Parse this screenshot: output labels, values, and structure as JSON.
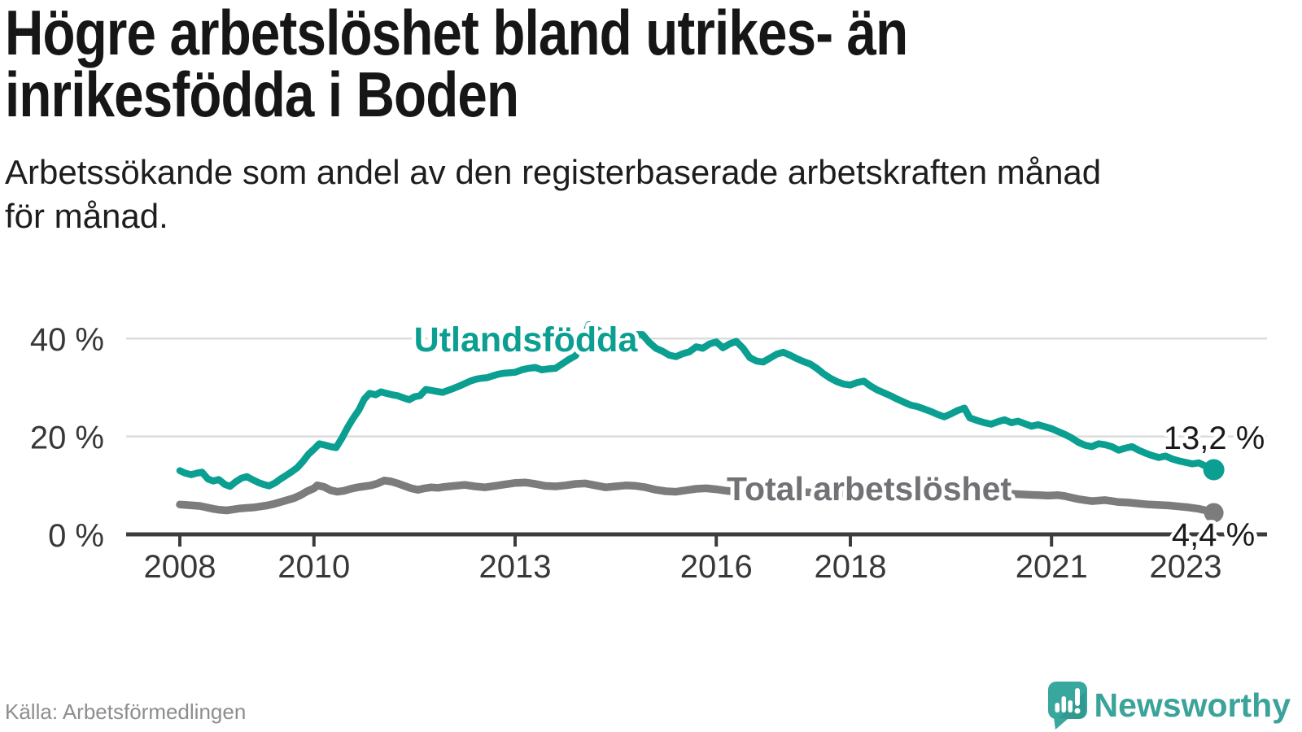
{
  "header": {
    "title_lines": [
      "Högre arbetslöshet bland utrikes- än",
      "inrikesfödda i Boden"
    ],
    "subtitle_lines": [
      "Arbetssökande som andel av den registerbaserade arbetskraften månad",
      "för månad."
    ]
  },
  "chart": {
    "y_axis": {
      "tick_values": [
        0,
        20,
        40
      ],
      "tick_labels": [
        "0 %",
        "20 %",
        "40 %"
      ]
    },
    "x_axis": {
      "tick_values": [
        2008,
        2010,
        2013,
        2016,
        2018,
        2021,
        2023
      ],
      "tick_labels": [
        "2008",
        "2010",
        "2013",
        "2016",
        "2018",
        "2021",
        "2023"
      ]
    }
  },
  "chart_data": {
    "type": "line",
    "title": "Högre arbetslöshet bland utrikes- än inrikesfödda i Boden",
    "subtitle": "Arbetssökande som andel av den registerbaserade arbetskraften månad för månad.",
    "xlabel": "",
    "ylabel": "Arbetssökande som andel av den registerbaserade arbetskraften (%)",
    "x_ticks": [
      2008,
      2010,
      2013,
      2016,
      2018,
      2021,
      2023
    ],
    "y_ticks": [
      0,
      20,
      40
    ],
    "ylim": [
      0,
      44
    ],
    "xlim": [
      2007.75,
      2023.95
    ],
    "grid": "horizontal",
    "legend": "inline-labels",
    "series": [
      {
        "name": "Utlandsfödda",
        "color": "#0a9f91",
        "end_value": 13.2,
        "end_label": "13,2 %",
        "points": [
          [
            2008,
            13
          ],
          [
            2008.08,
            12.5
          ],
          [
            2008.17,
            12.2
          ],
          [
            2008.25,
            12.5
          ],
          [
            2008.33,
            12.7
          ],
          [
            2008.42,
            11.3
          ],
          [
            2008.5,
            10.9
          ],
          [
            2008.58,
            11.2
          ],
          [
            2008.67,
            10.2
          ],
          [
            2008.75,
            9.8
          ],
          [
            2008.83,
            10.7
          ],
          [
            2008.92,
            11.5
          ],
          [
            2009,
            11.8
          ],
          [
            2009.08,
            11.2
          ],
          [
            2009.17,
            10.6
          ],
          [
            2009.25,
            10.2
          ],
          [
            2009.33,
            9.9
          ],
          [
            2009.42,
            10.5
          ],
          [
            2009.5,
            11.3
          ],
          [
            2009.58,
            12
          ],
          [
            2009.67,
            12.8
          ],
          [
            2009.75,
            13.6
          ],
          [
            2009.83,
            14.8
          ],
          [
            2009.92,
            16.4
          ],
          [
            2010,
            17.4
          ],
          [
            2010.08,
            18.5
          ],
          [
            2010.17,
            18.2
          ],
          [
            2010.25,
            17.9
          ],
          [
            2010.33,
            17.7
          ],
          [
            2010.42,
            19.7
          ],
          [
            2010.5,
            21.8
          ],
          [
            2010.58,
            23.6
          ],
          [
            2010.67,
            25.4
          ],
          [
            2010.75,
            27.6
          ],
          [
            2010.83,
            28.8
          ],
          [
            2010.92,
            28.5
          ],
          [
            2011,
            29.1
          ],
          [
            2011.08,
            28.8
          ],
          [
            2011.17,
            28.5
          ],
          [
            2011.25,
            28.3
          ],
          [
            2011.33,
            27.9
          ],
          [
            2011.42,
            27.5
          ],
          [
            2011.5,
            28.1
          ],
          [
            2011.58,
            28.3
          ],
          [
            2011.67,
            29.6
          ],
          [
            2011.75,
            29.4
          ],
          [
            2011.83,
            29.2
          ],
          [
            2011.92,
            29
          ],
          [
            2012,
            29.4
          ],
          [
            2012.08,
            29.8
          ],
          [
            2012.17,
            30.3
          ],
          [
            2012.25,
            30.8
          ],
          [
            2012.33,
            31.3
          ],
          [
            2012.42,
            31.7
          ],
          [
            2012.5,
            31.9
          ],
          [
            2012.58,
            32
          ],
          [
            2012.67,
            32.4
          ],
          [
            2012.75,
            32.7
          ],
          [
            2012.83,
            32.9
          ],
          [
            2012.92,
            33
          ],
          [
            2013,
            33.1
          ],
          [
            2013.1,
            33.6
          ],
          [
            2013.2,
            33.9
          ],
          [
            2013.3,
            34.1
          ],
          [
            2013.4,
            33.6
          ],
          [
            2013.5,
            33.8
          ],
          [
            2013.6,
            33.9
          ],
          [
            2013.7,
            34.8
          ],
          [
            2013.8,
            35.7
          ],
          [
            2013.9,
            36.5
          ],
          [
            2014,
            39
          ],
          [
            2014.1,
            42.8
          ],
          [
            2014.2,
            42
          ],
          [
            2014.3,
            41.2
          ],
          [
            2014.45,
            40.6
          ],
          [
            2014.6,
            41
          ],
          [
            2014.75,
            40.8
          ],
          [
            2014.9,
            40.8
          ],
          [
            2015,
            39.2
          ],
          [
            2015.1,
            38
          ],
          [
            2015.2,
            37.4
          ],
          [
            2015.3,
            36.6
          ],
          [
            2015.4,
            36.3
          ],
          [
            2015.5,
            36.9
          ],
          [
            2015.6,
            37.3
          ],
          [
            2015.7,
            38.3
          ],
          [
            2015.8,
            38
          ],
          [
            2015.9,
            38.9
          ],
          [
            2016,
            39.3
          ],
          [
            2016.1,
            38.1
          ],
          [
            2016.2,
            38.9
          ],
          [
            2016.3,
            39.4
          ],
          [
            2016.4,
            38
          ],
          [
            2016.5,
            36.1
          ],
          [
            2016.6,
            35.4
          ],
          [
            2016.7,
            35.2
          ],
          [
            2016.8,
            36
          ],
          [
            2016.9,
            36.8
          ],
          [
            2017,
            37.2
          ],
          [
            2017.1,
            36.6
          ],
          [
            2017.2,
            35.9
          ],
          [
            2017.3,
            35.3
          ],
          [
            2017.4,
            34.8
          ],
          [
            2017.5,
            33.9
          ],
          [
            2017.6,
            32.8
          ],
          [
            2017.7,
            31.9
          ],
          [
            2017.8,
            31.2
          ],
          [
            2017.9,
            30.7
          ],
          [
            2018,
            30.5
          ],
          [
            2018.1,
            31
          ],
          [
            2018.2,
            31.3
          ],
          [
            2018.3,
            30.3
          ],
          [
            2018.4,
            29.5
          ],
          [
            2018.5,
            28.9
          ],
          [
            2018.6,
            28.3
          ],
          [
            2018.7,
            27.6
          ],
          [
            2018.8,
            27
          ],
          [
            2018.9,
            26.4
          ],
          [
            2019,
            26.1
          ],
          [
            2019.1,
            25.6
          ],
          [
            2019.2,
            25.1
          ],
          [
            2019.3,
            24.5
          ],
          [
            2019.4,
            24
          ],
          [
            2019.5,
            24.6
          ],
          [
            2019.6,
            25.3
          ],
          [
            2019.7,
            25.8
          ],
          [
            2019.78,
            23.8
          ],
          [
            2019.9,
            23.2
          ],
          [
            2020,
            22.8
          ],
          [
            2020.1,
            22.5
          ],
          [
            2020.2,
            23
          ],
          [
            2020.3,
            23.4
          ],
          [
            2020.4,
            22.8
          ],
          [
            2020.5,
            23.1
          ],
          [
            2020.6,
            22.6
          ],
          [
            2020.7,
            22.1
          ],
          [
            2020.8,
            22.4
          ],
          [
            2020.9,
            22
          ],
          [
            2021,
            21.6
          ],
          [
            2021.1,
            21
          ],
          [
            2021.2,
            20.4
          ],
          [
            2021.3,
            19.7
          ],
          [
            2021.4,
            18.8
          ],
          [
            2021.5,
            18.2
          ],
          [
            2021.6,
            17.9
          ],
          [
            2021.7,
            18.5
          ],
          [
            2021.8,
            18.3
          ],
          [
            2021.9,
            17.9
          ],
          [
            2022,
            17.2
          ],
          [
            2022.1,
            17.6
          ],
          [
            2022.2,
            17.9
          ],
          [
            2022.3,
            17.2
          ],
          [
            2022.4,
            16.6
          ],
          [
            2022.5,
            16.1
          ],
          [
            2022.6,
            15.7
          ],
          [
            2022.7,
            16
          ],
          [
            2022.8,
            15.4
          ],
          [
            2022.9,
            15
          ],
          [
            2023,
            14.7
          ],
          [
            2023.1,
            14.4
          ],
          [
            2023.2,
            14.6
          ],
          [
            2023.3,
            13.9
          ],
          [
            2023.42,
            13.2
          ]
        ]
      },
      {
        "name": "Total arbetslöshet",
        "color": "#7c7c7c",
        "end_value": 4.4,
        "end_label": "4,4 %",
        "points": [
          [
            2008,
            6.1
          ],
          [
            2008.1,
            6
          ],
          [
            2008.2,
            5.9
          ],
          [
            2008.3,
            5.8
          ],
          [
            2008.4,
            5.5
          ],
          [
            2008.5,
            5.2
          ],
          [
            2008.6,
            5
          ],
          [
            2008.7,
            4.9
          ],
          [
            2008.8,
            5.1
          ],
          [
            2008.9,
            5.3
          ],
          [
            2009,
            5.4
          ],
          [
            2009.1,
            5.5
          ],
          [
            2009.2,
            5.7
          ],
          [
            2009.3,
            5.9
          ],
          [
            2009.4,
            6.2
          ],
          [
            2009.5,
            6.6
          ],
          [
            2009.6,
            7
          ],
          [
            2009.7,
            7.4
          ],
          [
            2009.8,
            8
          ],
          [
            2009.9,
            8.8
          ],
          [
            2010,
            9.4
          ],
          [
            2010.05,
            10
          ],
          [
            2010.15,
            9.7
          ],
          [
            2010.25,
            9
          ],
          [
            2010.35,
            8.7
          ],
          [
            2010.45,
            8.9
          ],
          [
            2010.55,
            9.3
          ],
          [
            2010.65,
            9.6
          ],
          [
            2010.75,
            9.8
          ],
          [
            2010.85,
            10
          ],
          [
            2010.95,
            10.4
          ],
          [
            2011.05,
            11
          ],
          [
            2011.15,
            10.8
          ],
          [
            2011.25,
            10.4
          ],
          [
            2011.35,
            9.9
          ],
          [
            2011.45,
            9.4
          ],
          [
            2011.55,
            9.1
          ],
          [
            2011.65,
            9.4
          ],
          [
            2011.75,
            9.6
          ],
          [
            2011.85,
            9.5
          ],
          [
            2011.95,
            9.7
          ],
          [
            2012.1,
            9.9
          ],
          [
            2012.25,
            10.1
          ],
          [
            2012.4,
            9.8
          ],
          [
            2012.55,
            9.6
          ],
          [
            2012.7,
            9.9
          ],
          [
            2012.85,
            10.2
          ],
          [
            2013,
            10.5
          ],
          [
            2013.15,
            10.6
          ],
          [
            2013.3,
            10.3
          ],
          [
            2013.45,
            9.9
          ],
          [
            2013.6,
            9.8
          ],
          [
            2013.75,
            10
          ],
          [
            2013.9,
            10.3
          ],
          [
            2014.05,
            10.4
          ],
          [
            2014.2,
            10
          ],
          [
            2014.35,
            9.6
          ],
          [
            2014.5,
            9.8
          ],
          [
            2014.65,
            10
          ],
          [
            2014.8,
            9.9
          ],
          [
            2014.95,
            9.6
          ],
          [
            2015.1,
            9.1
          ],
          [
            2015.25,
            8.8
          ],
          [
            2015.4,
            8.7
          ],
          [
            2015.55,
            9
          ],
          [
            2015.7,
            9.3
          ],
          [
            2015.85,
            9.4
          ],
          [
            2016,
            9.2
          ],
          [
            2016.15,
            8.9
          ],
          [
            2016.3,
            8.7
          ],
          [
            2016.45,
            8.8
          ],
          [
            2016.6,
            9
          ],
          [
            2016.75,
            9.1
          ],
          [
            2016.9,
            9
          ],
          [
            2017.05,
            8.9
          ],
          [
            2017.2,
            8.7
          ],
          [
            2017.35,
            8.6
          ],
          [
            2017.5,
            8.5
          ],
          [
            2017.65,
            8.4
          ],
          [
            2017.8,
            8.4
          ],
          [
            2017.95,
            8.3
          ],
          [
            2018.1,
            8.3
          ],
          [
            2018.25,
            8.2
          ],
          [
            2018.4,
            8.1
          ],
          [
            2018.55,
            8
          ],
          [
            2018.7,
            7.9
          ],
          [
            2018.85,
            7.9
          ],
          [
            2019,
            7.8
          ],
          [
            2019.15,
            7.7
          ],
          [
            2019.3,
            7.7
          ],
          [
            2019.45,
            7.8
          ],
          [
            2019.6,
            7.8
          ],
          [
            2019.75,
            7.9
          ],
          [
            2019.9,
            8
          ],
          [
            2020.05,
            8.2
          ],
          [
            2020.2,
            8.4
          ],
          [
            2020.35,
            8.3
          ],
          [
            2020.5,
            8.2
          ],
          [
            2020.65,
            8.1
          ],
          [
            2020.8,
            8
          ],
          [
            2020.95,
            7.9
          ],
          [
            2021.1,
            8
          ],
          [
            2021.2,
            7.8
          ],
          [
            2021.3,
            7.5
          ],
          [
            2021.4,
            7.2
          ],
          [
            2021.5,
            7
          ],
          [
            2021.6,
            6.8
          ],
          [
            2021.7,
            6.9
          ],
          [
            2021.8,
            7
          ],
          [
            2021.9,
            6.8
          ],
          [
            2022,
            6.6
          ],
          [
            2022.15,
            6.5
          ],
          [
            2022.3,
            6.3
          ],
          [
            2022.45,
            6.1
          ],
          [
            2022.6,
            6
          ],
          [
            2022.75,
            5.9
          ],
          [
            2022.9,
            5.7
          ],
          [
            2023.05,
            5.5
          ],
          [
            2023.2,
            5.2
          ],
          [
            2023.3,
            4.9
          ],
          [
            2023.42,
            4.4
          ]
        ]
      }
    ]
  },
  "footer": {
    "source": "Källa: Arbetsförmedlingen",
    "brand": "Newsworthy"
  },
  "colors": {
    "teal_line": "#0a9f91",
    "gray_line": "#7c7c7c",
    "gray_label": "#717176",
    "value_label": "#1a1a1a",
    "axis": "#3c3c3c",
    "grid": "#dcdcdc",
    "brand_teal": "#3ba39a",
    "source_text": "#8d8d8d"
  }
}
